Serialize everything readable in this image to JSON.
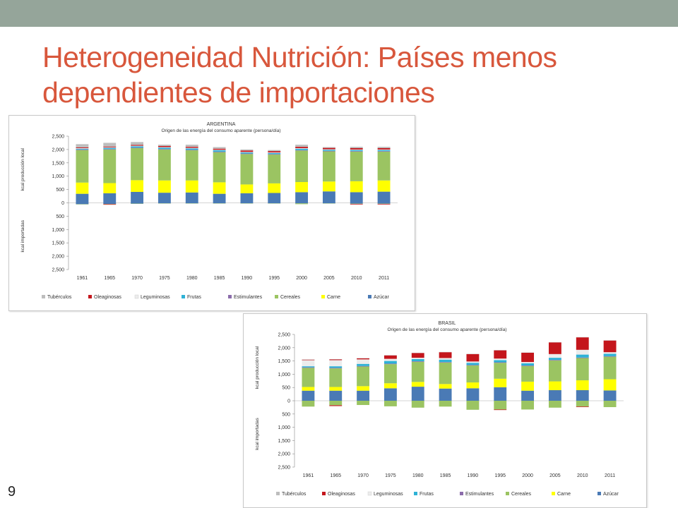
{
  "slide": {
    "title_line1": "Heterogeneidad Nutrición: Países menos",
    "title_line2": "dependientes de importaciones",
    "page_number": "9"
  },
  "colors": {
    "top_band": "#95a59a",
    "title": "#d8573c"
  },
  "chart_data": [
    {
      "type": "bar",
      "stacked": true,
      "title": "ARGENTINA",
      "subtitle": "Origen de las energía del consumo aparente (persona/día)",
      "ylabel_top": "kcal producción local",
      "ylabel_bottom": "kcal importadas",
      "categories": [
        "1961",
        "1965",
        "1970",
        "1975",
        "1980",
        "1985",
        "1990",
        "1995",
        "2000",
        "2005",
        "2010",
        "2011"
      ],
      "yticks": [
        "2,500",
        "2,000",
        "1,500",
        "1,000",
        "500",
        "0",
        "500",
        "1,000",
        "1,500",
        "2,000",
        "2,500"
      ],
      "ylim": [
        -2500,
        2500
      ],
      "grid": false,
      "legend_position": "bottom",
      "series": [
        {
          "name": "Azúcar",
          "color": "#4a7ab5",
          "values": [
            340,
            360,
            410,
            380,
            390,
            340,
            360,
            370,
            400,
            430,
            400,
            420
          ],
          "imports": [
            -50,
            -40,
            -30,
            -20,
            -20,
            -20,
            -20,
            -20,
            -20,
            -20,
            -30,
            -30
          ]
        },
        {
          "name": "Carne",
          "color": "#ffff00",
          "values": [
            420,
            380,
            440,
            460,
            450,
            430,
            330,
            360,
            380,
            370,
            410,
            420
          ],
          "imports": [
            0,
            0,
            0,
            0,
            0,
            0,
            0,
            0,
            0,
            0,
            0,
            0
          ]
        },
        {
          "name": "Cereales",
          "color": "#9bc462",
          "values": [
            1220,
            1260,
            1200,
            1160,
            1130,
            1130,
            1140,
            1080,
            1180,
            1130,
            1110,
            1080
          ],
          "imports": [
            -10,
            -10,
            -10,
            -10,
            -10,
            -10,
            -10,
            -10,
            -30,
            -10,
            -10,
            -10
          ]
        },
        {
          "name": "Estimulantes",
          "color": "#8b6cab",
          "values": [
            20,
            20,
            20,
            20,
            20,
            20,
            20,
            20,
            20,
            20,
            20,
            20
          ],
          "imports": [
            0,
            0,
            0,
            0,
            0,
            0,
            0,
            0,
            0,
            0,
            0,
            0
          ]
        },
        {
          "name": "Frutas",
          "color": "#2eb2d6",
          "values": [
            30,
            40,
            50,
            50,
            50,
            50,
            40,
            40,
            50,
            40,
            40,
            40
          ],
          "imports": [
            0,
            0,
            0,
            0,
            0,
            0,
            0,
            0,
            0,
            0,
            0,
            0
          ]
        },
        {
          "name": "Leguminosas",
          "color": "#ececec",
          "values": [
            20,
            20,
            20,
            20,
            20,
            20,
            20,
            20,
            20,
            20,
            20,
            20
          ],
          "imports": [
            0,
            0,
            0,
            0,
            0,
            0,
            0,
            0,
            0,
            0,
            0,
            0
          ]
        },
        {
          "name": "Oleaginosas",
          "color": "#c4161c",
          "values": [
            30,
            30,
            30,
            40,
            40,
            40,
            50,
            50,
            50,
            50,
            50,
            50
          ],
          "imports": [
            0,
            -20,
            0,
            0,
            0,
            0,
            0,
            0,
            0,
            0,
            -20,
            -20
          ]
        },
        {
          "name": "Tubérculos",
          "color": "#bdbdbd",
          "values": [
            120,
            140,
            110,
            50,
            80,
            60,
            40,
            40,
            80,
            30,
            50,
            50
          ],
          "imports": [
            0,
            0,
            0,
            0,
            0,
            0,
            0,
            0,
            0,
            0,
            0,
            0
          ]
        }
      ]
    },
    {
      "type": "bar",
      "stacked": true,
      "title": "BRASIL",
      "subtitle": "Origen de las energía del consumo aparente (persona/día)",
      "ylabel_top": "kcal producción local",
      "ylabel_bottom": "kcal importadas",
      "categories": [
        "1961",
        "1965",
        "1970",
        "1975",
        "1980",
        "1985",
        "1990",
        "1995",
        "2000",
        "2005",
        "2010",
        "2011"
      ],
      "yticks": [
        "2,500",
        "2,000",
        "1,500",
        "1,000",
        "500",
        "0",
        "500",
        "1,000",
        "1,500",
        "2,000",
        "2,500"
      ],
      "ylim": [
        -2500,
        2500
      ],
      "grid": false,
      "legend_position": "bottom",
      "series": [
        {
          "name": "Azúcar",
          "color": "#4a7ab5",
          "values": [
            380,
            380,
            380,
            470,
            530,
            460,
            470,
            510,
            380,
            400,
            400,
            390
          ],
          "imports": [
            0,
            0,
            0,
            0,
            0,
            0,
            0,
            0,
            0,
            0,
            0,
            0
          ]
        },
        {
          "name": "Carne",
          "color": "#ffff00",
          "values": [
            140,
            140,
            170,
            190,
            180,
            170,
            220,
            320,
            340,
            330,
            370,
            420
          ],
          "imports": [
            0,
            0,
            0,
            0,
            0,
            0,
            0,
            0,
            0,
            0,
            0,
            0
          ]
        },
        {
          "name": "Cereales",
          "color": "#9bc462",
          "values": [
            720,
            700,
            740,
            720,
            760,
            810,
            640,
            600,
            590,
            790,
            840,
            850
          ],
          "imports": [
            -220,
            -170,
            -160,
            -210,
            -260,
            -220,
            -340,
            -330,
            -330,
            -260,
            -220,
            -240
          ]
        },
        {
          "name": "Estimulantes",
          "color": "#8b6cab",
          "values": [
            20,
            20,
            20,
            20,
            20,
            20,
            20,
            20,
            20,
            20,
            20,
            20
          ],
          "imports": [
            0,
            0,
            0,
            0,
            0,
            0,
            0,
            0,
            0,
            0,
            0,
            0
          ]
        },
        {
          "name": "Frutas",
          "color": "#2eb2d6",
          "values": [
            40,
            60,
            80,
            100,
            80,
            90,
            80,
            80,
            80,
            80,
            110,
            90
          ],
          "imports": [
            0,
            0,
            0,
            0,
            0,
            0,
            0,
            0,
            0,
            0,
            0,
            0
          ]
        },
        {
          "name": "Leguminosas",
          "color": "#ececec",
          "values": [
            230,
            230,
            170,
            80,
            50,
            60,
            50,
            60,
            50,
            140,
            180,
            60
          ],
          "imports": [
            0,
            0,
            0,
            0,
            0,
            0,
            0,
            0,
            0,
            0,
            0,
            0
          ]
        },
        {
          "name": "Oleaginosas",
          "color": "#c4161c",
          "values": [
            20,
            30,
            40,
            130,
            180,
            220,
            280,
            310,
            350,
            440,
            470,
            440
          ],
          "imports": [
            0,
            -30,
            0,
            0,
            0,
            0,
            0,
            -20,
            0,
            0,
            -20,
            0
          ]
        },
        {
          "name": "Tubérculos",
          "color": "#bdbdbd",
          "values": [
            10,
            10,
            10,
            10,
            10,
            10,
            10,
            10,
            10,
            10,
            10,
            10
          ],
          "imports": [
            0,
            0,
            0,
            0,
            0,
            0,
            0,
            0,
            0,
            0,
            0,
            0
          ]
        }
      ]
    }
  ]
}
